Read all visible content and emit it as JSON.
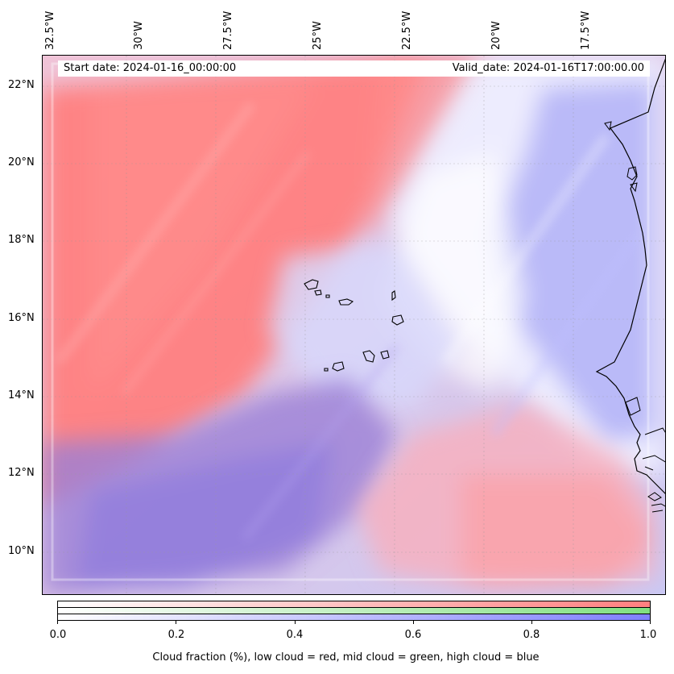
{
  "map": {
    "start_date": "Start date: 2024-01-16_00:00:00",
    "valid_date": "Valid_date: 2024-01-16T17:00:00.00",
    "lon_labels": [
      "32.5°W",
      "30°W",
      "27.5°W",
      "25°W",
      "22.5°W",
      "20°W",
      "17.5°W"
    ],
    "lat_labels": [
      "22°N",
      "20°N",
      "18°N",
      "16°N",
      "14°N",
      "12°N",
      "10°N"
    ],
    "colors": {
      "low_cloud": "#ff7f7f",
      "mid_cloud": "#80e080",
      "high_cloud": "#7f7fff",
      "coast": "#000000"
    }
  },
  "colorbar": {
    "ticks": [
      "0.0",
      "0.2",
      "0.4",
      "0.6",
      "0.8",
      "1.0"
    ],
    "caption": "Cloud fraction (%), low cloud = red, mid cloud = green, high cloud = blue"
  }
}
